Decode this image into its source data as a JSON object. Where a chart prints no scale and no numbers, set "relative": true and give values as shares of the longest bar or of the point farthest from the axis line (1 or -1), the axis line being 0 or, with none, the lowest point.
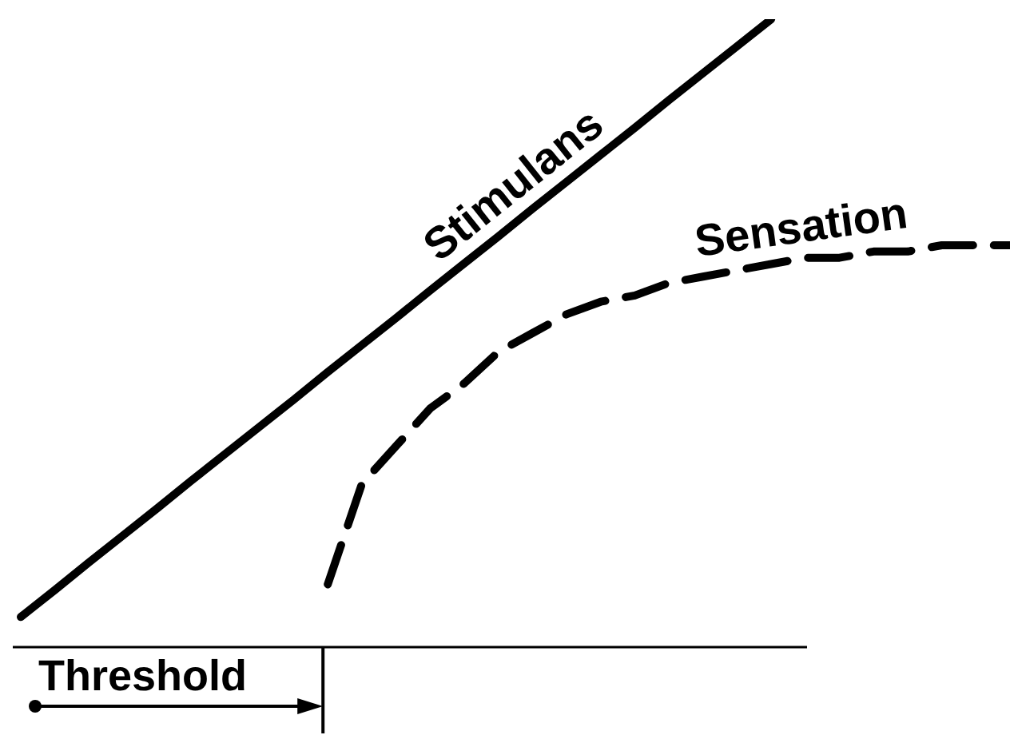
{
  "chart_data": {
    "type": "line",
    "relative": true,
    "categories": [
      null,
      null,
      null,
      null,
      null,
      null,
      null,
      null,
      null,
      null,
      null,
      null,
      null,
      null,
      null,
      null,
      null,
      null,
      null,
      null,
      null,
      null,
      null,
      null,
      null,
      null,
      null,
      null,
      null,
      null
    ],
    "series": [
      {
        "name": "Stimulans",
        "color": "#000000",
        "line_style": "solid",
        "values": [
          0.048,
          0.091,
          0.135,
          0.178,
          0.221,
          0.265,
          0.308,
          0.351,
          0.394,
          0.438,
          0.481,
          0.524,
          0.568,
          0.611,
          0.654,
          0.698,
          0.741,
          0.784,
          0.827,
          0.871,
          0.914,
          0.957,
          1.0,
          null,
          null,
          null,
          null,
          null,
          null,
          null
        ]
      },
      {
        "name": "Sensation",
        "color": "#000000",
        "line_style": "dashed",
        "values": [
          null,
          null,
          null,
          null,
          null,
          null,
          null,
          null,
          null,
          0.1,
          0.26,
          0.32,
          0.38,
          0.42,
          0.47,
          0.5,
          0.53,
          0.55,
          0.56,
          0.58,
          0.59,
          0.6,
          0.61,
          0.62,
          0.62,
          0.63,
          0.63,
          0.64,
          0.64,
          0.64
        ]
      }
    ],
    "annotations": [
      "Threshold"
    ]
  }
}
